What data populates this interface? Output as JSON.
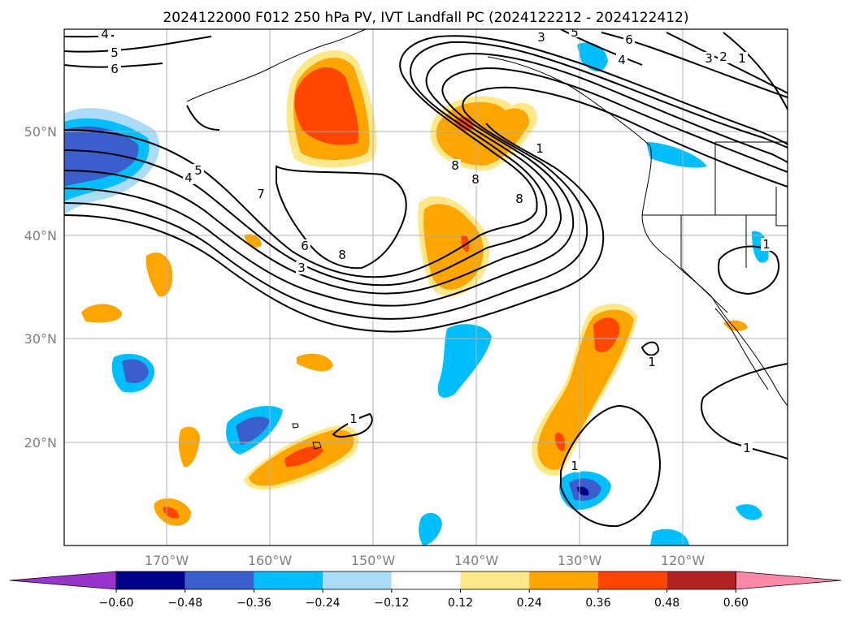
{
  "title": "2024122000 F012 250 hPa PV, IVT Landfall PC (2024122212 - 2024122412)",
  "map": {
    "lon_labels": [
      "170°W",
      "160°W",
      "150°W",
      "140°W",
      "130°W",
      "120°W"
    ],
    "lat_labels": [
      "50°N",
      "40°N",
      "30°N",
      "20°N"
    ]
  },
  "pv_contour_labels": [
    "4",
    "5",
    "6",
    "5",
    "4",
    "7",
    "6",
    "3",
    "8",
    "1",
    "8",
    "8",
    "8",
    "3",
    "5",
    "6",
    "4",
    "3",
    "2",
    "1",
    "1",
    "1",
    "1",
    "1",
    "1"
  ],
  "colorbar": {
    "ticks": [
      "−0.60",
      "−0.48",
      "−0.36",
      "−0.24",
      "−0.12",
      "0.12",
      "0.24",
      "0.36",
      "0.48",
      "0.60"
    ],
    "colors": [
      "#9933cc",
      "#00008b",
      "#3a5ecc",
      "#00bfff",
      "#aadcf8",
      "#ffffff",
      "#ffe88a",
      "#ffa500",
      "#ff4500",
      "#b22222",
      "#ff88aa"
    ]
  }
}
